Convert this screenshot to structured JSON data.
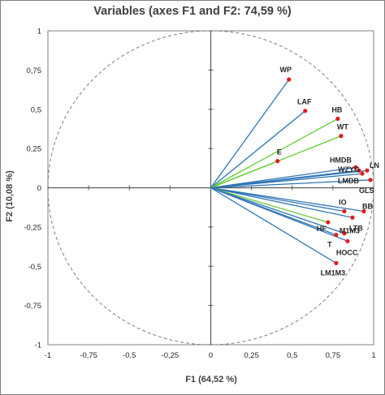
{
  "chart_data": {
    "type": "scatter",
    "subtype": "pca-correlation-circle",
    "title": "Variables (axes F1 and F2: 74,59 %)",
    "xlabel": "F1 (64,52 %)",
    "ylabel": "F2 (10,08 %)",
    "xlim": [
      -1,
      1
    ],
    "ylim": [
      -1,
      1
    ],
    "x_ticks": [
      "-1",
      "-0,75",
      "-0,5",
      "-0,25",
      "0",
      "0,25",
      "0,5",
      "0,75",
      "1"
    ],
    "y_ticks": [
      "1",
      "0,75",
      "0,5",
      "0,25",
      "0",
      "-0,25",
      "-0,5",
      "-0,75",
      "-1"
    ],
    "grid": false,
    "unit_circle": true,
    "colors": {
      "blue_vector": "#2e75b6",
      "green_vector": "#66cc33",
      "point": "#e41a1c",
      "axis": "#595959",
      "circle": "#7f7f7f",
      "text": "#262626"
    },
    "variables": [
      {
        "label": "WP",
        "x": 0.48,
        "y": 0.69,
        "color": "blue"
      },
      {
        "label": "LAF",
        "x": 0.58,
        "y": 0.49,
        "color": "blue"
      },
      {
        "label": "HB",
        "x": 0.78,
        "y": 0.44,
        "color": "green"
      },
      {
        "label": "WT",
        "x": 0.8,
        "y": 0.33,
        "color": "green"
      },
      {
        "label": "E",
        "x": 0.41,
        "y": 0.17,
        "color": "green"
      },
      {
        "label": "HMDB",
        "x": 0.89,
        "y": 0.13,
        "color": "blue"
      },
      {
        "label": "WZYG",
        "x": 0.91,
        "y": 0.11,
        "color": "blue"
      },
      {
        "label": "LN",
        "x": 0.96,
        "y": 0.11,
        "color": "blue"
      },
      {
        "label": "LMDB",
        "x": 0.93,
        "y": 0.09,
        "color": "blue"
      },
      {
        "label": "GLS",
        "x": 0.98,
        "y": 0.05,
        "color": "blue"
      },
      {
        "label": "IO",
        "x": 0.82,
        "y": -0.15,
        "color": "blue"
      },
      {
        "label": "BB",
        "x": 0.94,
        "y": -0.15,
        "color": "blue"
      },
      {
        "label": "LTB",
        "x": 0.87,
        "y": -0.19,
        "color": "blue"
      },
      {
        "label": "HF",
        "x": 0.72,
        "y": -0.22,
        "color": "green"
      },
      {
        "label": "M1M3",
        "x": 0.82,
        "y": -0.29,
        "color": "blue"
      },
      {
        "label": "T",
        "x": 0.77,
        "y": -0.3,
        "color": "blue"
      },
      {
        "label": "HOCC",
        "x": 0.84,
        "y": -0.34,
        "color": "blue"
      },
      {
        "label": "LM1M3",
        "x": 0.77,
        "y": -0.48,
        "color": "blue"
      }
    ]
  }
}
